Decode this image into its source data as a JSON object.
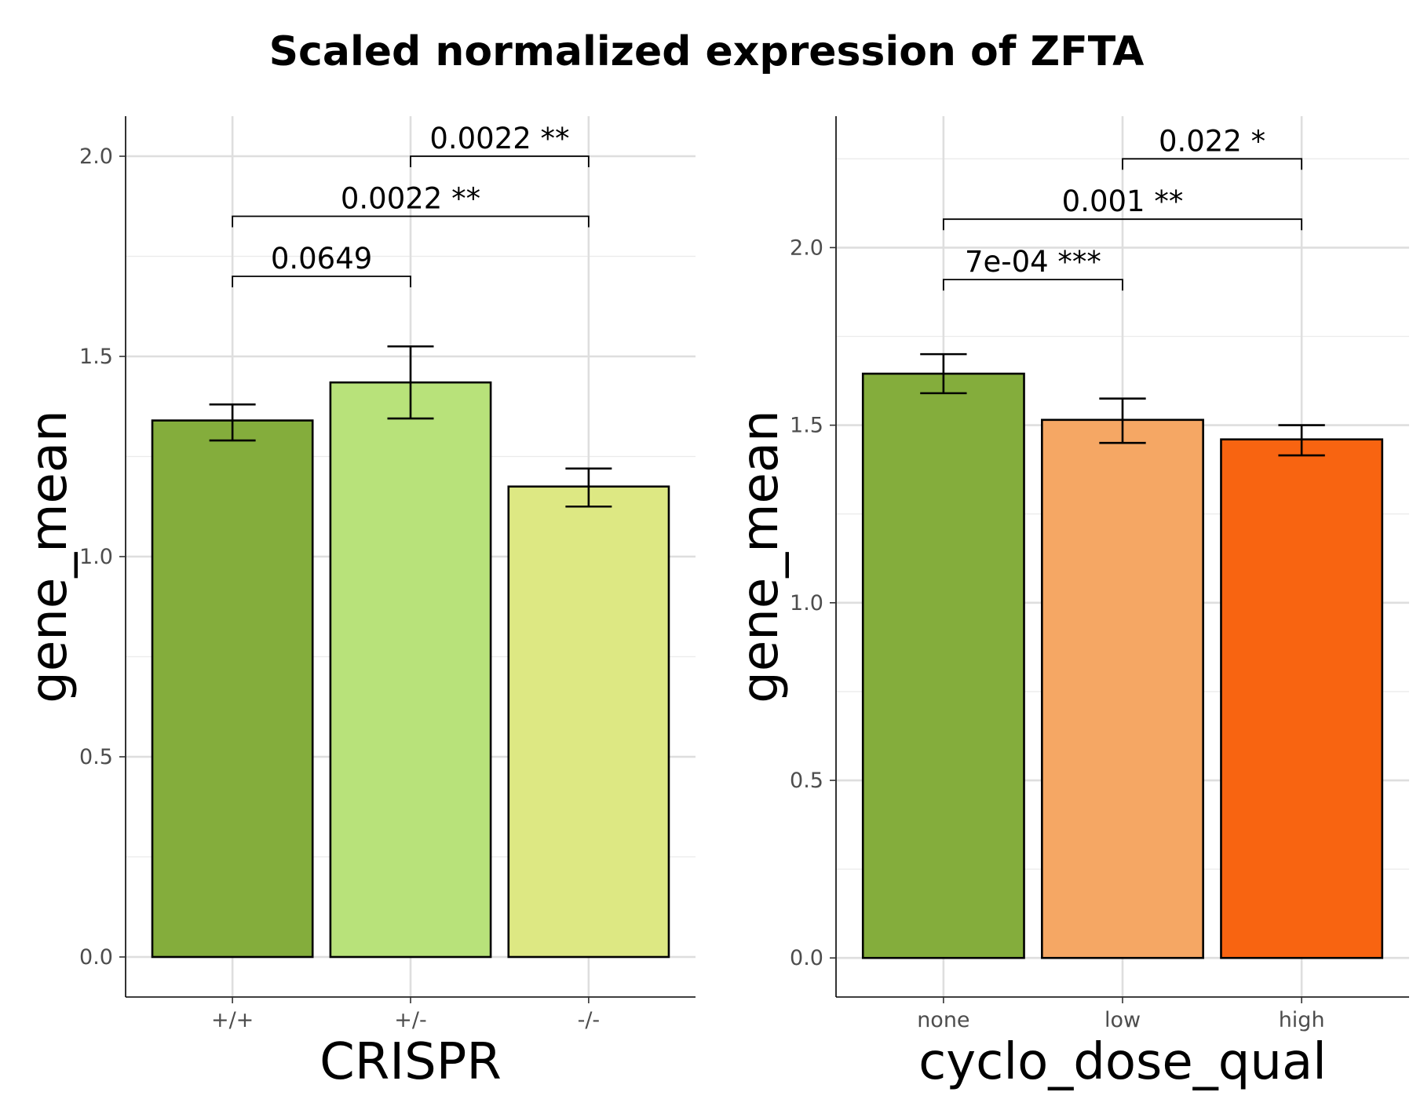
{
  "title": "Scaled normalized expression of ZFTA",
  "chart_data": [
    {
      "type": "bar",
      "xlabel": "CRISPR",
      "ylabel": "gene_mean",
      "ylim": [
        -0.1,
        2.1
      ],
      "yticks": [
        0.0,
        0.5,
        1.0,
        1.5,
        2.0
      ],
      "ytick_labels": [
        "0.0",
        "0.5",
        "1.0",
        "1.5",
        "2.0"
      ],
      "grid": true,
      "categories": [
        "+/+",
        "+/-",
        "-/-"
      ],
      "values": [
        1.34,
        1.435,
        1.175
      ],
      "error_low": [
        1.29,
        1.345,
        1.125
      ],
      "error_high": [
        1.38,
        1.525,
        1.22
      ],
      "colors": [
        "#84ad3c",
        "#b8e27a",
        "#dde883"
      ],
      "comparisons": [
        {
          "from": 0,
          "to": 1,
          "y": 1.7,
          "label": "0.0649"
        },
        {
          "from": 0,
          "to": 2,
          "y": 1.85,
          "label": "0.0022 **"
        },
        {
          "from": 1,
          "to": 2,
          "y": 2.0,
          "label": "0.0022 **"
        }
      ]
    },
    {
      "type": "bar",
      "xlabel": "cyclo_dose_qual",
      "ylabel": "gene_mean",
      "ylim": [
        -0.11,
        2.37
      ],
      "yticks": [
        0.0,
        0.5,
        1.0,
        1.5,
        2.0
      ],
      "ytick_labels": [
        "0.0",
        "0.5",
        "1.0",
        "1.5",
        "2.0"
      ],
      "grid": true,
      "categories": [
        "none",
        "low",
        "high"
      ],
      "values": [
        1.645,
        1.515,
        1.46
      ],
      "error_low": [
        1.59,
        1.45,
        1.415
      ],
      "error_high": [
        1.7,
        1.575,
        1.5
      ],
      "colors": [
        "#84ad3c",
        "#f5a764",
        "#f86411"
      ],
      "comparisons": [
        {
          "from": 0,
          "to": 1,
          "y": 1.91,
          "label": "7e-04 ***"
        },
        {
          "from": 0,
          "to": 2,
          "y": 2.08,
          "label": "0.001 **"
        },
        {
          "from": 1,
          "to": 2,
          "y": 2.25,
          "label": "0.022 *"
        }
      ]
    }
  ]
}
